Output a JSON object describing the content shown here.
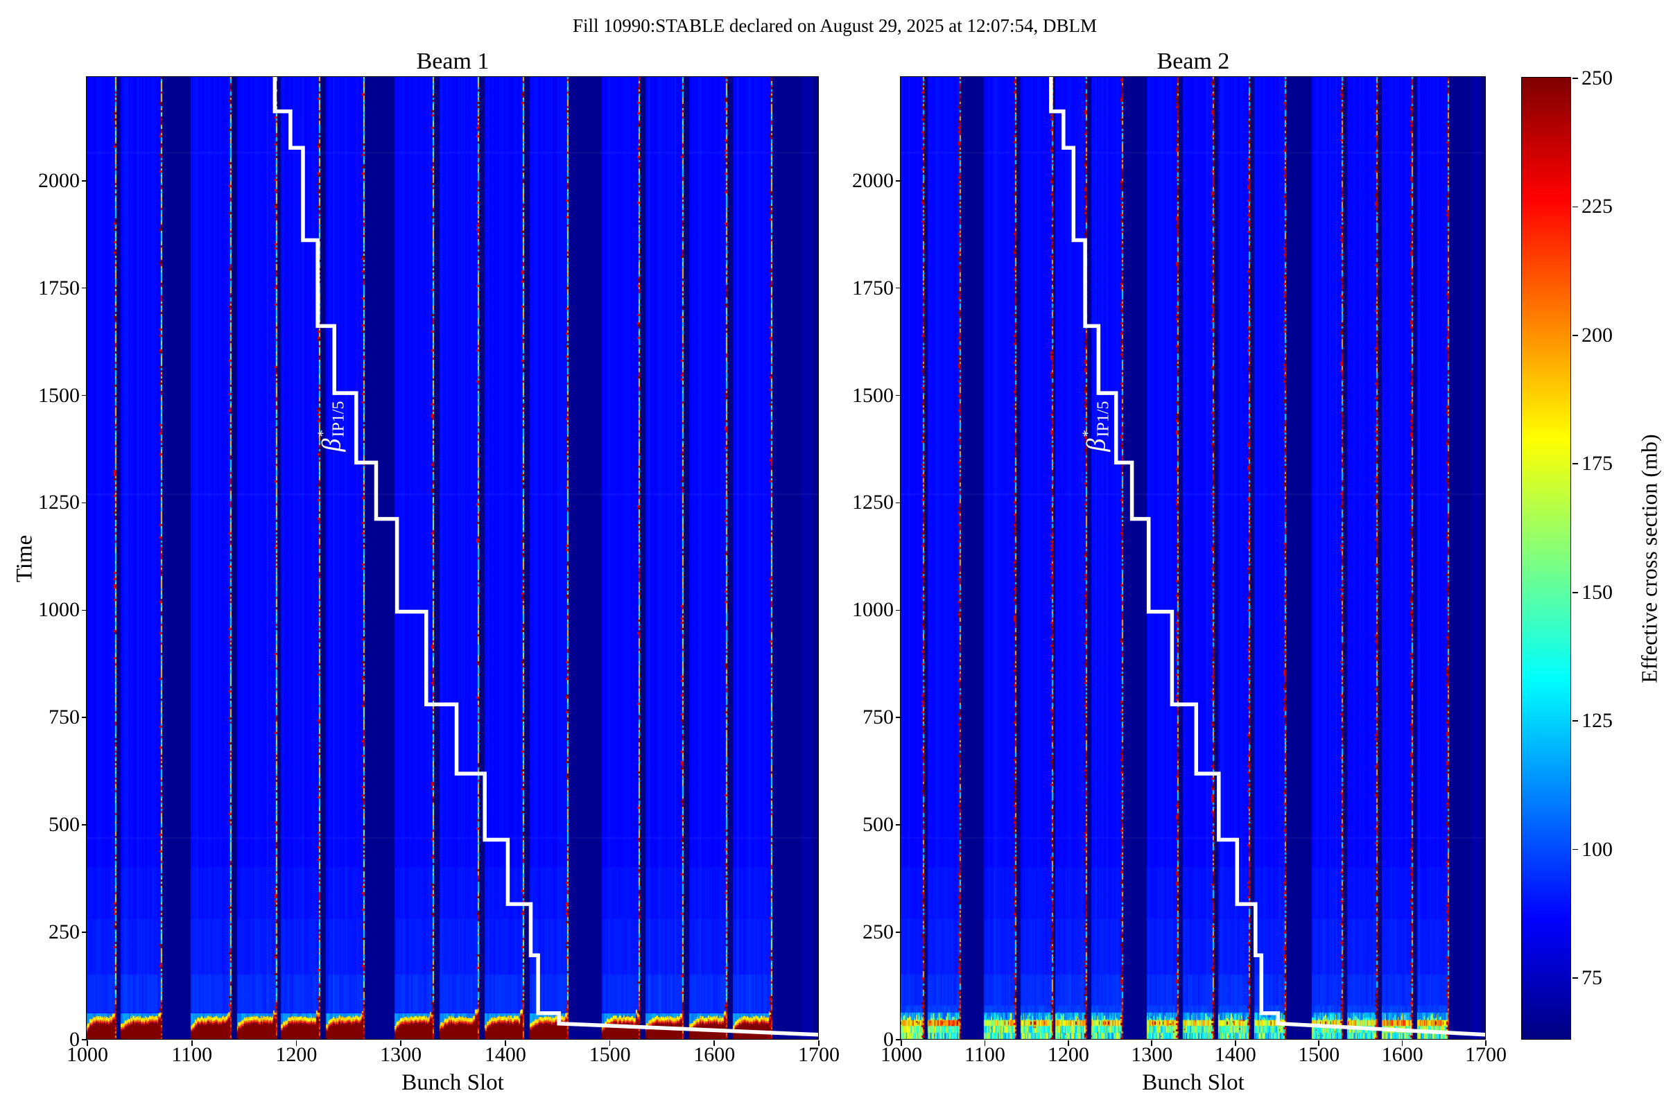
{
  "suptitle": "Fill 10990:STABLE declared on August 29, 2025 at 12:07:54, DBLM",
  "chart_data": {
    "type": "heatmap",
    "colormap": "jet",
    "vmin": 63,
    "vmax": 250,
    "xlabel": "Bunch Slot",
    "ylabel": "Time",
    "xlim": [
      1000,
      1700
    ],
    "ylim": [
      0,
      2240
    ],
    "xticks": [
      1000,
      1100,
      1200,
      1300,
      1400,
      1500,
      1600,
      1700
    ],
    "yticks": [
      0,
      250,
      500,
      750,
      1000,
      1250,
      1500,
      1750,
      2000
    ],
    "panels": [
      {
        "title": "Beam 1",
        "bottom_style": "saturated-red-blobs"
      },
      {
        "title": "Beam 2",
        "bottom_style": "streaky-yellow-green"
      }
    ],
    "background_value": 87,
    "gap_value": 63,
    "wide_gap_value": 66,
    "bunch_trains": [
      [
        1000,
        1026
      ],
      [
        1033,
        1070
      ],
      [
        1100,
        1136
      ],
      [
        1144,
        1180
      ],
      [
        1186,
        1221
      ],
      [
        1229,
        1264
      ],
      [
        1295,
        1330
      ],
      [
        1338,
        1373
      ],
      [
        1381,
        1416
      ],
      [
        1424,
        1459
      ],
      [
        1493,
        1527
      ],
      [
        1535,
        1569
      ],
      [
        1577,
        1611
      ],
      [
        1619,
        1654
      ]
    ],
    "faint_column": [
      1684,
      1694
    ],
    "faint_rows_time": [
      2065,
      1270,
      470
    ],
    "beam1_bottom": {
      "core_value": 250,
      "core_max_time": 34,
      "fringe_bands": [
        [
          3,
          230
        ],
        [
          4,
          207
        ],
        [
          9,
          178
        ]
      ],
      "glow_top_time": 60,
      "streak_top_time": 400
    },
    "beam2_bottom": {
      "band_time": [
        30,
        44
      ],
      "band_value_range": [
        150,
        207
      ],
      "streak_top_time": 62,
      "streak_value_range": [
        100,
        185
      ],
      "boost_after_slot": 1570,
      "haze_top_time": 120
    },
    "beta_star": {
      "base": "β",
      "sup": "*",
      "sub": "IP1/5",
      "steps": [
        [
          1180,
          2240
        ],
        [
          1180,
          2160
        ],
        [
          1195,
          2160
        ],
        [
          1195,
          2075
        ],
        [
          1207,
          2075
        ],
        [
          1207,
          1860
        ],
        [
          1221,
          1860
        ],
        [
          1221,
          1660
        ],
        [
          1237,
          1660
        ],
        [
          1237,
          1504
        ],
        [
          1258,
          1504
        ],
        [
          1258,
          1342
        ],
        [
          1277,
          1342
        ],
        [
          1277,
          1211
        ],
        [
          1297,
          1211
        ],
        [
          1297,
          995
        ],
        [
          1325,
          995
        ],
        [
          1325,
          779
        ],
        [
          1354,
          779
        ],
        [
          1354,
          618
        ],
        [
          1381,
          618
        ],
        [
          1381,
          464
        ],
        [
          1403,
          464
        ],
        [
          1403,
          314
        ],
        [
          1425,
          314
        ],
        [
          1425,
          195
        ],
        [
          1432,
          195
        ],
        [
          1432,
          60
        ],
        [
          1452,
          60
        ],
        [
          1452,
          36
        ],
        [
          1700,
          10
        ]
      ]
    },
    "colorbar": {
      "label": "Effective cross section (mb)",
      "ticks": [
        75,
        100,
        125,
        150,
        175,
        200,
        225,
        250
      ]
    }
  },
  "colors": {
    "figure_background": "#ffffff",
    "axis": "#000000",
    "gap_navy": "#000080",
    "train_blue": "#0003ff",
    "hot_core": "#800000",
    "line_white": "#ffffff"
  }
}
